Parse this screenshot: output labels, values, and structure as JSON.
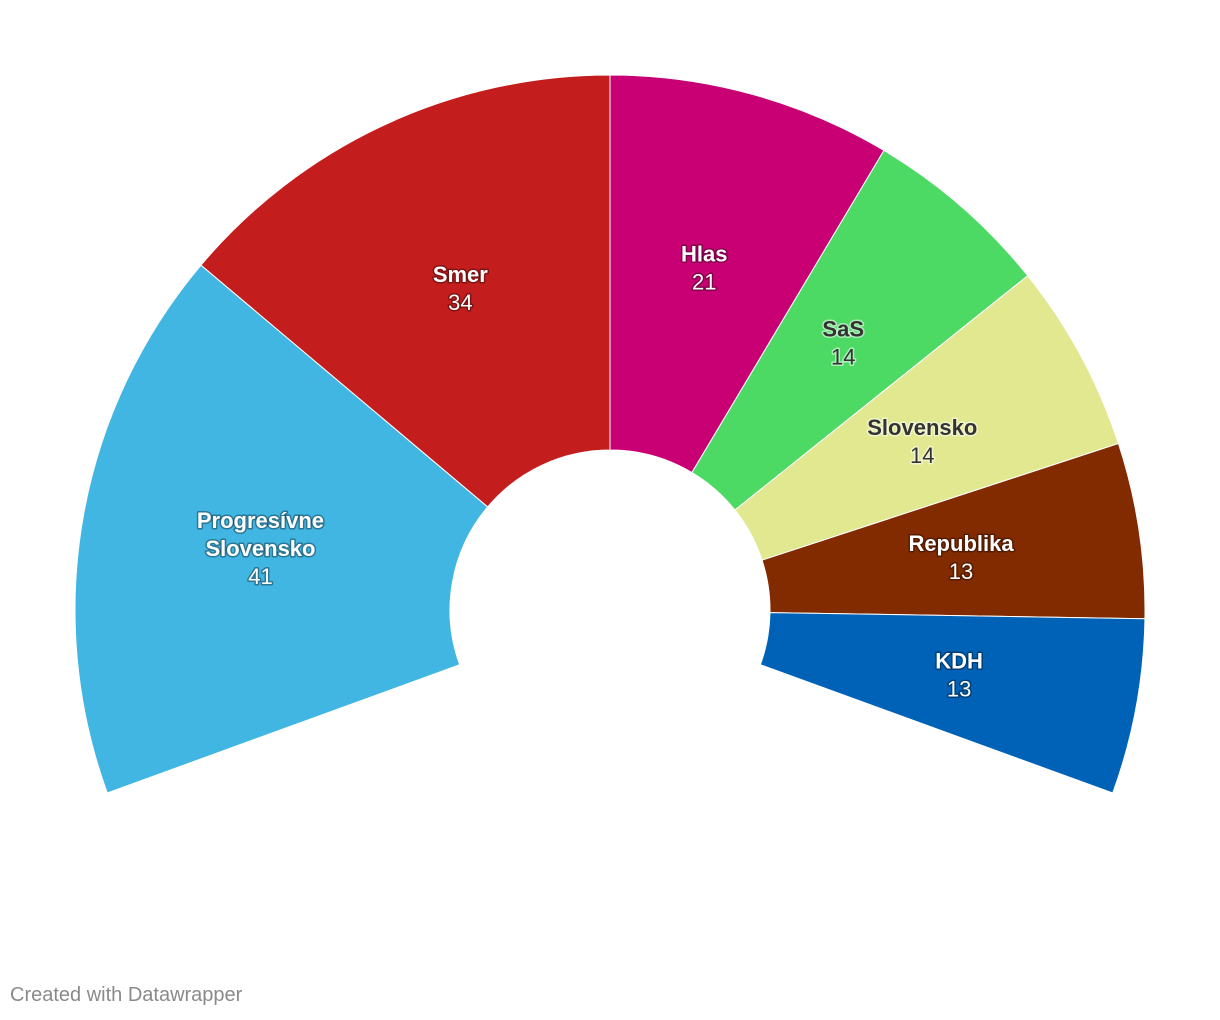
{
  "chart_data": {
    "type": "pie",
    "subtype": "parliament-half-donut",
    "start_angle_deg": -110,
    "end_angle_deg": 110,
    "total": 150,
    "series": [
      {
        "label_lines": [
          "Progresívne",
          "Slovensko"
        ],
        "value": 41,
        "color": "#41b6e3",
        "label_tone": "dark"
      },
      {
        "label_lines": [
          "Smer"
        ],
        "value": 34,
        "color": "#c41d1d",
        "label_tone": "dark"
      },
      {
        "label_lines": [
          "Hlas"
        ],
        "value": 21,
        "color": "#c90074",
        "label_tone": "dark"
      },
      {
        "label_lines": [
          "SaS"
        ],
        "value": 14,
        "color": "#4cd964",
        "label_tone": "light"
      },
      {
        "label_lines": [
          "Slovensko"
        ],
        "value": 14,
        "color": "#e1e88f",
        "label_tone": "light"
      },
      {
        "label_lines": [
          "Republika"
        ],
        "value": 13,
        "color": "#822a00",
        "label_tone": "dark"
      },
      {
        "label_lines": [
          "KDH"
        ],
        "value": 13,
        "color": "#0062b6",
        "label_tone": "dark"
      }
    ]
  },
  "footer": {
    "credit": "Created with Datawrapper"
  }
}
